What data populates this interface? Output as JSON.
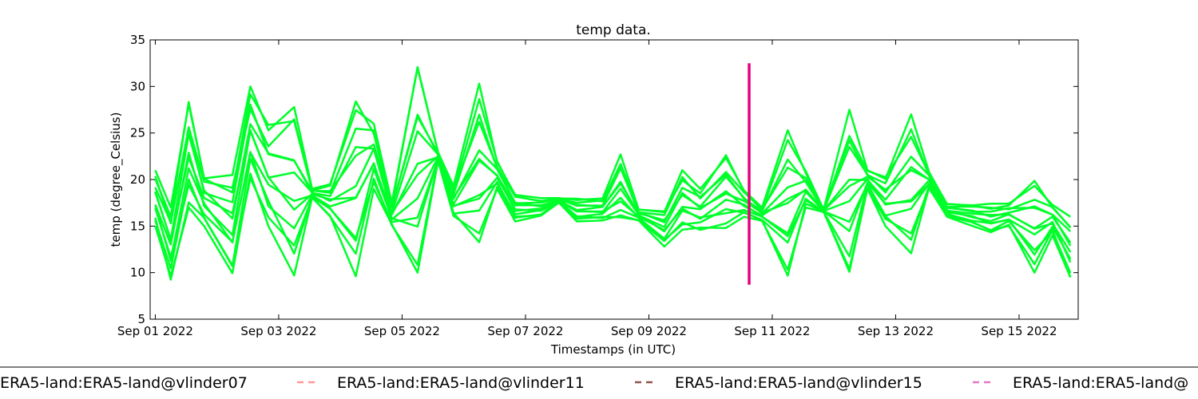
{
  "chart_data": {
    "type": "line",
    "title": "temp data.",
    "xlabel": "Timestamps (in UTC)",
    "ylabel": "temp (degree_Celsius)",
    "ylim": [
      5,
      35
    ],
    "yticks": [
      5,
      10,
      15,
      20,
      25,
      30,
      35
    ],
    "xlim": [
      "2022-08-31T22:00",
      "2022-09-15T23:00"
    ],
    "xticks": [
      {
        "value": "2022-09-01",
        "label": "Sep 01 2022"
      },
      {
        "value": "2022-09-03",
        "label": "Sep 03 2022"
      },
      {
        "value": "2022-09-05",
        "label": "Sep 05 2022"
      },
      {
        "value": "2022-09-07",
        "label": "Sep 07 2022"
      },
      {
        "value": "2022-09-09",
        "label": "Sep 09 2022"
      },
      {
        "value": "2022-09-11",
        "label": "Sep 11 2022"
      },
      {
        "value": "2022-09-13",
        "label": "Sep 13 2022"
      },
      {
        "value": "2022-09-15",
        "label": "Sep 15 2022"
      }
    ],
    "grid": false,
    "legend_position": "bottom",
    "observation_color": "#00ff2a",
    "observation_envelope": {
      "x": [
        "2022-09-01T00:00",
        "2022-09-01T06:00",
        "2022-09-01T13:00",
        "2022-09-01T19:00",
        "2022-09-02T06:00",
        "2022-09-02T13:00",
        "2022-09-02T20:00",
        "2022-09-03T06:00",
        "2022-09-03T13:00",
        "2022-09-03T20:00",
        "2022-09-04T06:00",
        "2022-09-04T13:00",
        "2022-09-04T20:00",
        "2022-09-05T06:00",
        "2022-09-05T14:00",
        "2022-09-05T20:00",
        "2022-09-06T06:00",
        "2022-09-06T13:00",
        "2022-09-06T20:00",
        "2022-09-07T06:00",
        "2022-09-07T13:00",
        "2022-09-07T20:00",
        "2022-09-08T06:00",
        "2022-09-08T13:00",
        "2022-09-08T20:00",
        "2022-09-09T06:00",
        "2022-09-09T13:00",
        "2022-09-09T20:00",
        "2022-09-10T06:00",
        "2022-09-10T13:00",
        "2022-09-10T20:00",
        "2022-09-11T06:00",
        "2022-09-11T13:00",
        "2022-09-11T20:00",
        "2022-09-12T06:00",
        "2022-09-12T13:00",
        "2022-09-12T20:00",
        "2022-09-13T06:00",
        "2022-09-13T13:00",
        "2022-09-13T20:00",
        "2022-09-14T06:00",
        "2022-09-14T13:00",
        "2022-09-14T20:00",
        "2022-09-15T06:00",
        "2022-09-15T13:00",
        "2022-09-15T20:00"
      ],
      "low": [
        15,
        9,
        17,
        15,
        9.5,
        20,
        15,
        9.7,
        18,
        16,
        9.6,
        19,
        15,
        10,
        22,
        16,
        13,
        19,
        15.5,
        16,
        17.5,
        15.5,
        15.6,
        15.6,
        15.6,
        12.8,
        14.5,
        14.5,
        14.8,
        16,
        15.5,
        9.5,
        17,
        16.5,
        9,
        19,
        15,
        12,
        19,
        16,
        15,
        14.2,
        15,
        10,
        14,
        9
      ],
      "high": [
        21,
        17,
        28.5,
        20.5,
        20.5,
        30,
        26,
        28.5,
        19,
        19.5,
        29,
        26,
        17.5,
        32.5,
        23,
        19.3,
        30.3,
        22,
        18.5,
        18,
        18,
        18,
        18,
        22.7,
        16.8,
        16.8,
        21,
        19,
        22.7,
        19,
        17,
        25.3,
        21,
        16.8,
        27.5,
        21,
        20.5,
        27,
        20.8,
        17.4,
        17.4,
        17.4,
        17.4,
        20,
        17.4,
        16
      ]
    },
    "series": [
      {
        "name": "",
        "color": "#e6007e",
        "style": "solid",
        "x": [
          "2022-09-10T15:00",
          "2022-09-10T15:00"
        ],
        "values": [
          8.7,
          32.5
        ]
      }
    ],
    "legend": [
      {
        "label": "ERA5-land:ERA5-land@vlinder07",
        "color": "#aaaaaa"
      },
      {
        "label": "ERA5-land:ERA5-land@vlinder11",
        "color": "#ff9896"
      },
      {
        "label": "ERA5-land:ERA5-land@vlinder15",
        "color": "#8c564b"
      },
      {
        "label": "ERA5-land:ERA5-land@",
        "color": "#e377c2"
      }
    ]
  }
}
